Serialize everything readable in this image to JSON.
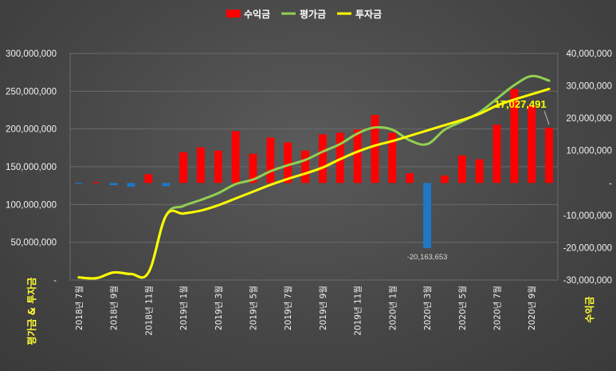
{
  "chart_data": {
    "type": "bar+line",
    "title": "",
    "legend": {
      "placement": "top-center",
      "entries": [
        {
          "name": "수익금",
          "color": "#ff0000",
          "kind": "bar"
        },
        {
          "name": "평가금",
          "color": "#92d050",
          "kind": "line"
        },
        {
          "name": "투자금",
          "color": "#ffff00",
          "kind": "line"
        }
      ]
    },
    "left_axis": {
      "title": "평가금 & 투자금",
      "min": 0,
      "max": 300000000,
      "step": 50000000,
      "tick_labels": [
        "-",
        "50,000,000",
        "100,000,000",
        "150,000,000",
        "200,000,000",
        "250,000,000",
        "300,000,000"
      ]
    },
    "right_axis": {
      "title": "수익금",
      "min": -30000000,
      "max": 40000000,
      "step": 10000000,
      "tick_labels": [
        "-30,000,000",
        "-20,000,000",
        "-10,000,000",
        "-",
        "10,000,000",
        "20,000,000",
        "30,000,000",
        "40,000,000"
      ]
    },
    "grid": true,
    "x_labels": [
      "2018년 7월",
      "2018년 9월",
      "2018년 11월",
      "2019년 1월",
      "2019년 3월",
      "2019년 5월",
      "2019년 7월",
      "2019년 9월",
      "2019년 11월",
      "2020년 1월",
      "2020년 3월",
      "2020년 5월",
      "2020년 7월",
      "2020년 9월"
    ],
    "categories": [
      "2018-07",
      "2018-08",
      "2018-09",
      "2018-10",
      "2018-11",
      "2018-12",
      "2019-01",
      "2019-02",
      "2019-03",
      "2019-04",
      "2019-05",
      "2019-06",
      "2019-07",
      "2019-08",
      "2019-09",
      "2019-10",
      "2019-11",
      "2019-12",
      "2020-01",
      "2020-02",
      "2020-03",
      "2020-04",
      "2020-05",
      "2020-06",
      "2020-07",
      "2020-08",
      "2020-09",
      "2020-10"
    ],
    "series": [
      {
        "name": "수익금",
        "axis": "right",
        "type": "bar",
        "positive_color": "#ff0000",
        "negative_color": "#1f77c8",
        "values": [
          -300000,
          300000,
          -700000,
          -1200000,
          2700000,
          -1000000,
          9500000,
          11000000,
          10000000,
          16000000,
          9000000,
          14000000,
          12500000,
          10000000,
          15000000,
          15500000,
          16500000,
          21000000,
          15500000,
          3000000,
          -20163653,
          2300000,
          8500000,
          7300000,
          18000000,
          29000000,
          24000000,
          17027491
        ]
      },
      {
        "name": "평가금",
        "axis": "left",
        "type": "line",
        "color": "#92d050",
        "values": [
          3500000,
          2500000,
          10000000,
          8000000,
          10000000,
          85000000,
          98000000,
          106000000,
          115000000,
          127000000,
          133000000,
          144000000,
          152000000,
          159000000,
          170000000,
          180000000,
          194000000,
          202000000,
          199000000,
          185000000,
          180000000,
          199000000,
          210000000,
          222000000,
          240000000,
          258000000,
          270000000,
          264000000
        ]
      },
      {
        "name": "투자금",
        "axis": "left",
        "type": "line",
        "color": "#ffff00",
        "values": [
          3500000,
          2500000,
          10000000,
          8000000,
          10000000,
          85000000,
          88000000,
          92000000,
          99000000,
          108000000,
          117000000,
          126000000,
          134000000,
          141000000,
          149000000,
          160000000,
          170000000,
          178000000,
          184000000,
          191000000,
          198000000,
          205000000,
          212000000,
          220000000,
          231000000,
          239000000,
          246000000,
          253000000
        ]
      }
    ],
    "annotations": [
      {
        "text": "17,027,491",
        "target": "2020-10",
        "style": "big"
      },
      {
        "text": "-20,163,653",
        "target": "2020-03",
        "style": "small"
      }
    ]
  }
}
